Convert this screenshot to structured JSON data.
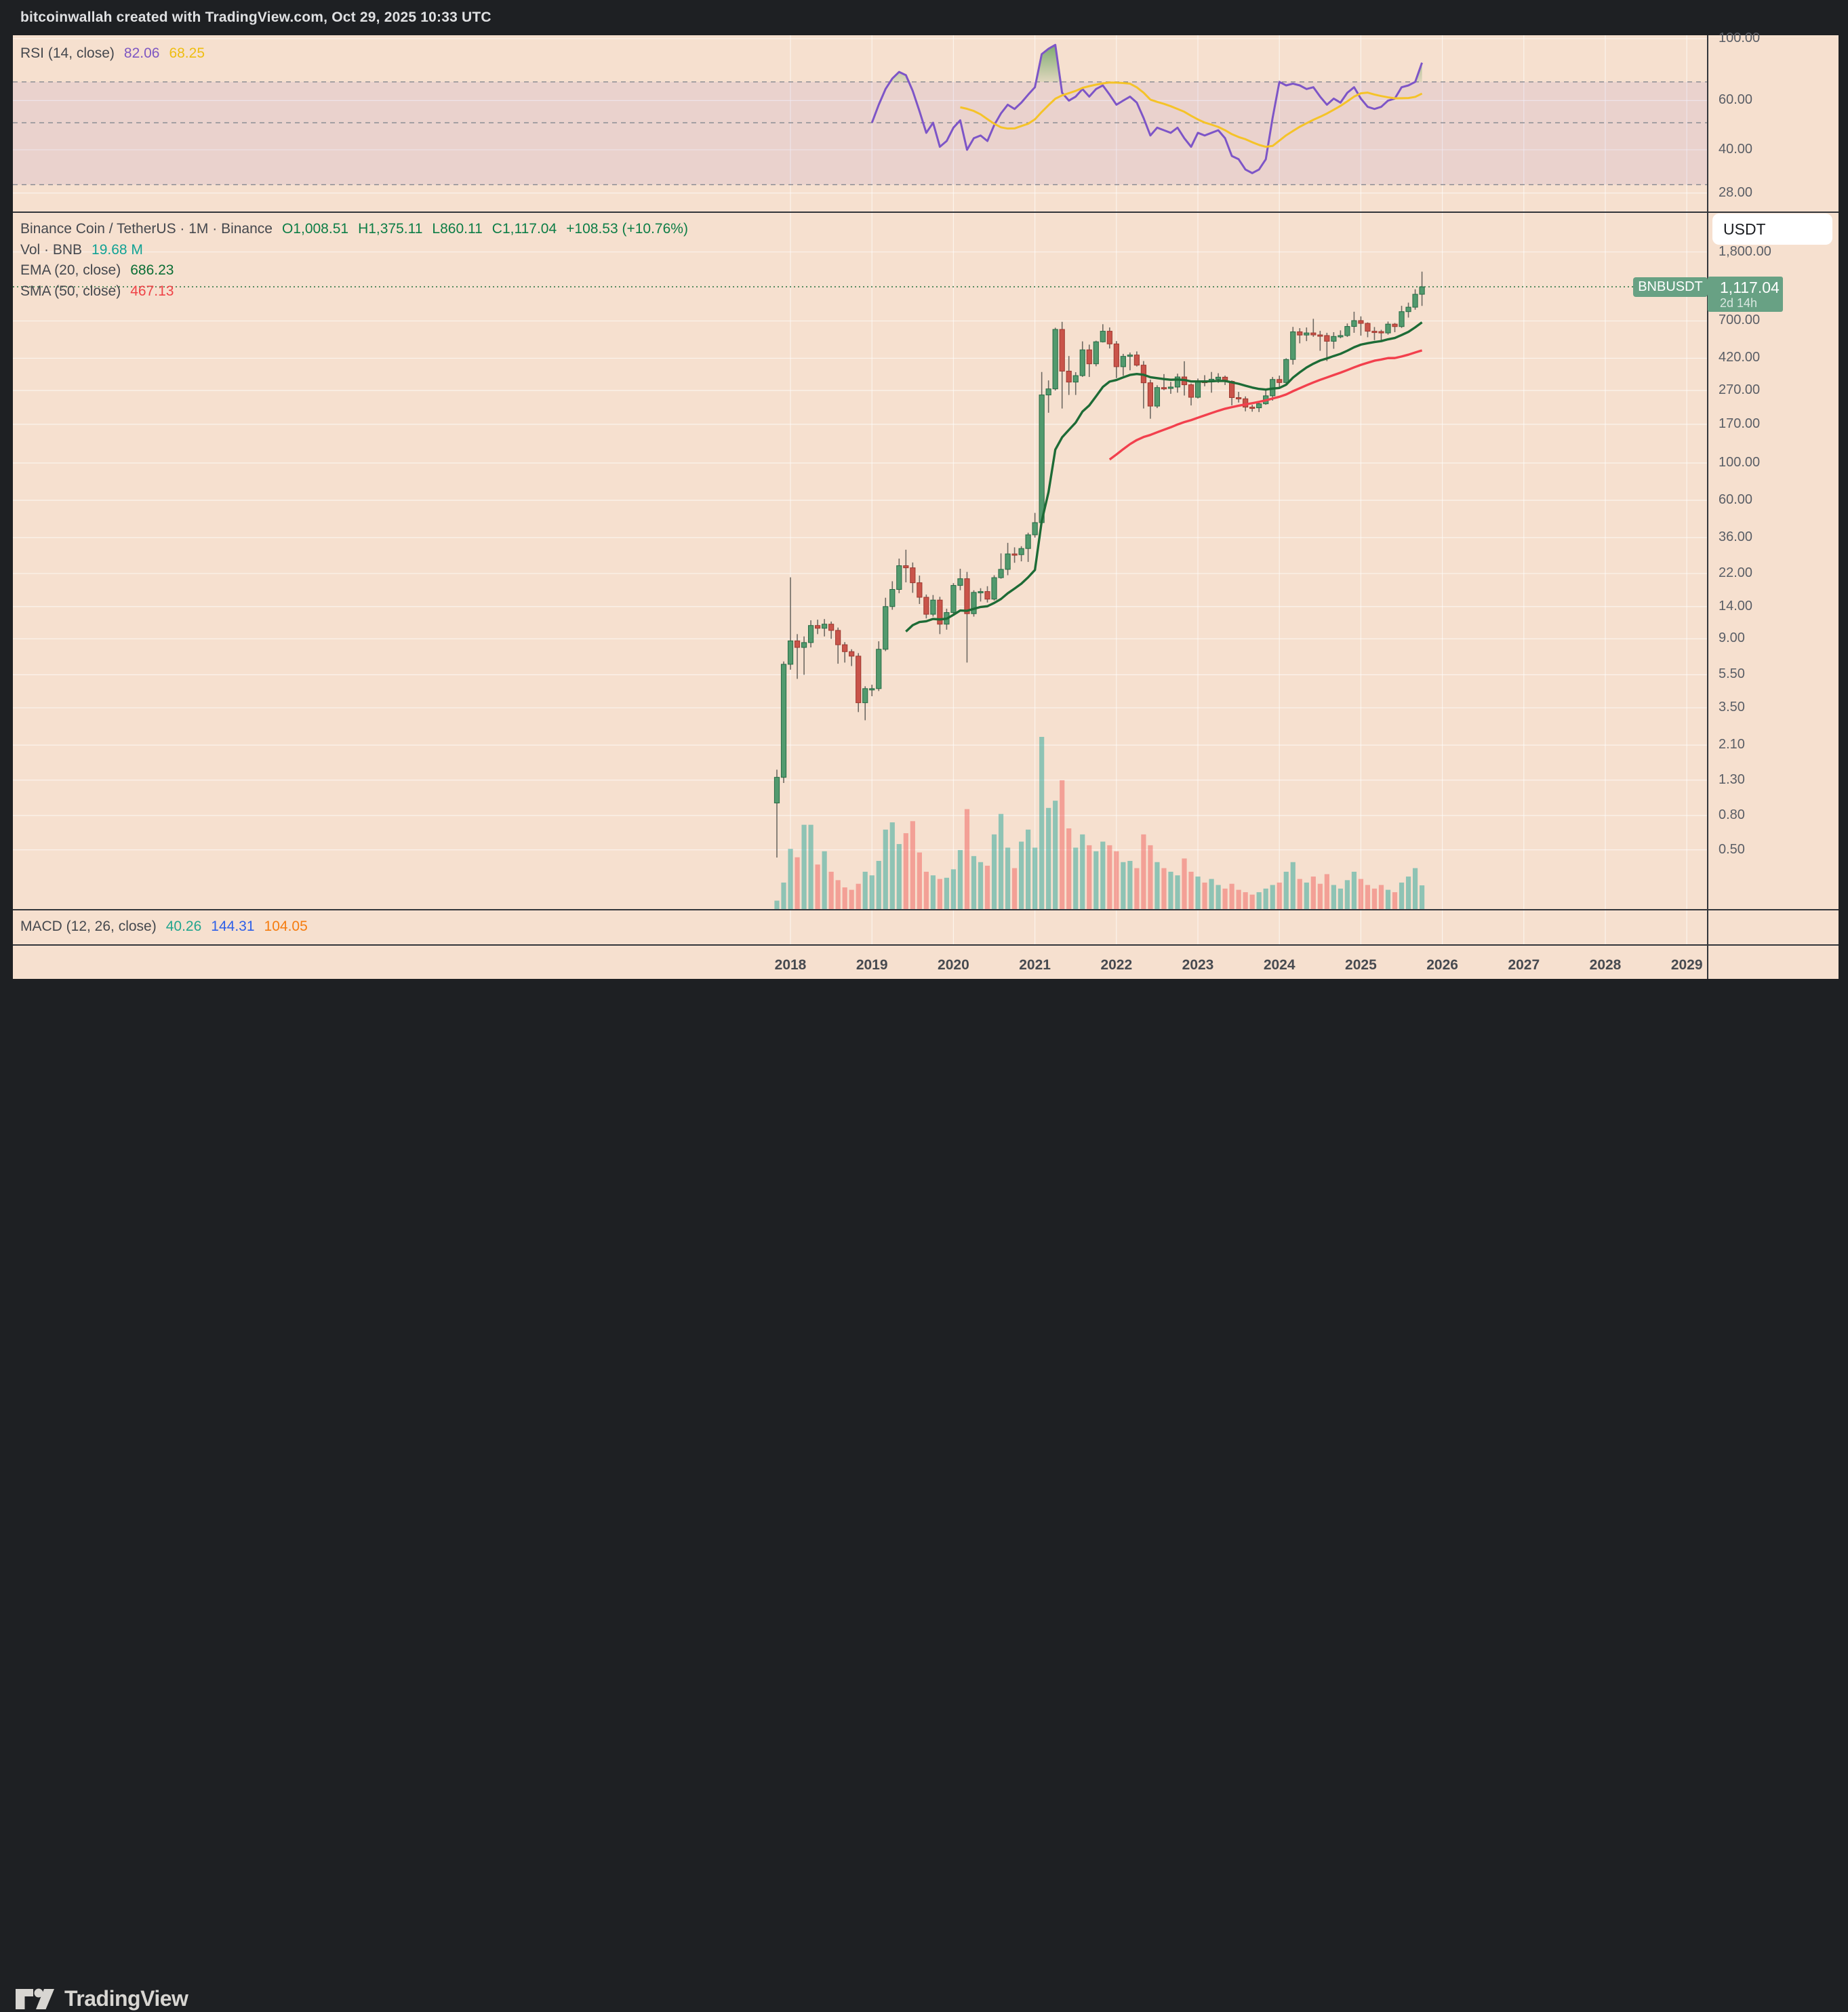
{
  "header": {
    "title": "bitcoinwallah created with TradingView.com, Oct 29, 2025 10:33 UTC"
  },
  "legend_rsi": {
    "label": "RSI (14, close)",
    "rsi_value": "82.06",
    "ma_value": "68.25"
  },
  "legend_main": {
    "title": "Binance Coin / TetherUS · 1M · Binance",
    "open": "O1,008.51",
    "high": "H1,375.11",
    "low": "L860.11",
    "close": "C1,117.04",
    "change": "+108.53 (+10.76%)"
  },
  "legend_vol": {
    "label": "Vol · BNB",
    "value": "19.68 M"
  },
  "legend_ema": {
    "label": "EMA (20, close)",
    "value": "686.23"
  },
  "legend_sma": {
    "label": "SMA (50, close)",
    "value": "467.13"
  },
  "legend_macd": {
    "label": "MACD (12, 26, close)",
    "hist": "40.26",
    "macd": "144.31",
    "signal": "104.05"
  },
  "price_scale": {
    "currency_button": "USDT",
    "symbol_tag": "BNBUSDT",
    "tag_price": "1,117.04",
    "tag_countdown": "2d 14h",
    "ticks": [
      {
        "label": "1,800.00",
        "value": 1800
      },
      {
        "label": "700.00",
        "value": 700
      },
      {
        "label": "420.00",
        "value": 420
      },
      {
        "label": "270.00",
        "value": 270
      },
      {
        "label": "170.00",
        "value": 170
      },
      {
        "label": "100.00",
        "value": 100
      },
      {
        "label": "60.00",
        "value": 60
      },
      {
        "label": "36.00",
        "value": 36
      },
      {
        "label": "22.00",
        "value": 22
      },
      {
        "label": "14.00",
        "value": 14
      },
      {
        "label": "9.00",
        "value": 9
      },
      {
        "label": "5.50",
        "value": 5.5
      },
      {
        "label": "3.50",
        "value": 3.5
      },
      {
        "label": "2.10",
        "value": 2.1
      },
      {
        "label": "1.30",
        "value": 1.3
      },
      {
        "label": "0.80",
        "value": 0.8
      },
      {
        "label": "0.50",
        "value": 0.5
      }
    ],
    "rsi_ticks": [
      {
        "label": "100.00",
        "value": 100
      },
      {
        "label": "60.00",
        "value": 60
      },
      {
        "label": "40.00",
        "value": 40
      },
      {
        "label": "28.00",
        "value": 28
      }
    ]
  },
  "time_scale": {
    "years": [
      2018,
      2019,
      2020,
      2021,
      2022,
      2023,
      2024,
      2025,
      2026,
      2027,
      2028,
      2029
    ]
  },
  "footer": {
    "brand": "TradingView"
  },
  "chart_data": {
    "type": "candlestick",
    "symbol": "BNBUSDT",
    "exchange": "Binance",
    "timeframe": "1M",
    "log_scale": true,
    "last_price": 1117.04,
    "countdown": "2d 14h",
    "indicators": {
      "ema_period": 20,
      "sma_period": 50,
      "rsi_period": 14,
      "rsi_ma_period": 14,
      "rsi_bands": [
        70,
        50,
        30
      ],
      "macd": {
        "fast": 12,
        "slow": 26,
        "source": "close",
        "hist": 40.26,
        "macd": 144.31,
        "signal": 104.05
      }
    },
    "columns": [
      "month",
      "open",
      "high",
      "low",
      "close",
      "volume_m"
    ],
    "candles": [
      [
        "2017-11",
        0.95,
        1.5,
        0.45,
        1.35,
        7
      ],
      [
        "2017-12",
        1.35,
        6.6,
        1.25,
        6.35,
        22
      ],
      [
        "2018-01",
        6.35,
        20.9,
        5.9,
        8.75,
        50
      ],
      [
        "2018-02",
        8.75,
        9.6,
        5.2,
        8.0,
        43
      ],
      [
        "2018-03",
        8.0,
        9.3,
        5.5,
        8.55,
        70
      ],
      [
        "2018-04",
        8.55,
        11.6,
        8.0,
        10.8,
        70
      ],
      [
        "2018-05",
        10.8,
        11.7,
        9.6,
        10.4,
        37
      ],
      [
        "2018-06",
        10.4,
        11.8,
        9.3,
        11.0,
        48
      ],
      [
        "2018-07",
        11.0,
        11.4,
        9.0,
        10.1,
        31
      ],
      [
        "2018-08",
        10.1,
        10.5,
        6.4,
        8.3,
        24
      ],
      [
        "2018-09",
        8.3,
        8.6,
        6.5,
        7.55,
        18
      ],
      [
        "2018-10",
        7.55,
        7.8,
        6.2,
        7.1,
        16
      ],
      [
        "2018-11",
        7.1,
        7.4,
        3.3,
        3.75,
        21
      ],
      [
        "2018-12",
        3.75,
        4.7,
        2.95,
        4.55,
        31
      ],
      [
        "2019-01",
        4.55,
        4.8,
        4.1,
        4.55,
        28
      ],
      [
        "2019-02",
        4.55,
        8.7,
        4.4,
        7.8,
        40
      ],
      [
        "2019-03",
        7.8,
        15.8,
        7.6,
        14.0,
        66
      ],
      [
        "2019-04",
        14.0,
        19.8,
        13.4,
        17.7,
        72
      ],
      [
        "2019-05",
        17.7,
        27.0,
        16.8,
        24.5,
        54
      ],
      [
        "2019-06",
        24.5,
        30.5,
        19.5,
        23.8,
        63
      ],
      [
        "2019-07",
        23.8,
        25.6,
        16.9,
        19.4,
        73
      ],
      [
        "2019-08",
        19.4,
        21.4,
        14.5,
        15.9,
        47
      ],
      [
        "2019-09",
        15.9,
        16.5,
        11.9,
        12.6,
        31
      ],
      [
        "2019-10",
        12.6,
        16.4,
        12.2,
        15.3,
        28
      ],
      [
        "2019-11",
        15.3,
        16.0,
        9.6,
        11.0,
        25
      ],
      [
        "2019-12",
        11.0,
        13.6,
        10.2,
        12.9,
        26
      ],
      [
        "2020-01",
        12.9,
        19.3,
        12.5,
        18.7,
        33
      ],
      [
        "2020-02",
        18.7,
        23.5,
        17.5,
        20.5,
        49
      ],
      [
        "2020-03",
        20.5,
        22.5,
        6.5,
        12.7,
        83
      ],
      [
        "2020-04",
        12.7,
        17.5,
        12.2,
        17.0,
        44
      ],
      [
        "2020-05",
        17.0,
        18.0,
        15.0,
        17.2,
        39
      ],
      [
        "2020-06",
        17.2,
        18.5,
        14.8,
        15.5,
        36
      ],
      [
        "2020-07",
        15.5,
        21.5,
        15.2,
        20.8,
        62
      ],
      [
        "2020-08",
        20.8,
        29.0,
        20.5,
        23.3,
        79
      ],
      [
        "2020-09",
        23.3,
        33.5,
        21.5,
        28.8,
        51
      ],
      [
        "2020-10",
        28.8,
        31.5,
        25.5,
        28.5,
        34
      ],
      [
        "2020-11",
        28.5,
        32.0,
        26.0,
        31.0,
        56
      ],
      [
        "2020-12",
        31.0,
        38.5,
        25.8,
        37.4,
        66
      ],
      [
        "2021-01",
        37.4,
        50.5,
        36.0,
        44.2,
        51
      ],
      [
        "2021-02",
        44.2,
        348.0,
        43.5,
        254.0,
        143
      ],
      [
        "2021-03",
        254.0,
        310.0,
        199.0,
        276.0,
        84
      ],
      [
        "2021-04",
        276.0,
        638.0,
        270.0,
        623.0,
        90
      ],
      [
        "2021-05",
        623.0,
        691.77,
        211.0,
        352.0,
        107
      ],
      [
        "2021-06",
        352.0,
        433.0,
        254.0,
        303.0,
        67
      ],
      [
        "2021-07",
        303.0,
        347.0,
        254.0,
        331.0,
        51
      ],
      [
        "2021-08",
        331.0,
        529.0,
        325.0,
        471.0,
        62
      ],
      [
        "2021-09",
        471.0,
        506.0,
        325.0,
        389.0,
        53
      ],
      [
        "2021-10",
        389.0,
        534.0,
        376.0,
        526.0,
        48
      ],
      [
        "2021-11",
        526.0,
        669.0,
        521.0,
        608.0,
        56
      ],
      [
        "2021-12",
        608.0,
        640.0,
        480.0,
        511.0,
        53
      ],
      [
        "2022-01",
        511.0,
        531.0,
        320.0,
        374.0,
        48
      ],
      [
        "2022-02",
        374.0,
        446.0,
        330.0,
        431.0,
        39
      ],
      [
        "2022-03",
        431.0,
        454.0,
        356.0,
        439.0,
        40
      ],
      [
        "2022-04",
        439.0,
        461.0,
        375.0,
        382.0,
        34
      ],
      [
        "2022-05",
        382.0,
        404.0,
        211.0,
        300.0,
        62
      ],
      [
        "2022-06",
        300.0,
        313.0,
        183.4,
        218.0,
        53
      ],
      [
        "2022-07",
        218.0,
        290.0,
        212.0,
        281.0,
        39
      ],
      [
        "2022-08",
        281.0,
        338.0,
        271.0,
        279.0,
        34
      ],
      [
        "2022-09",
        279.0,
        304.0,
        258.0,
        283.0,
        31
      ],
      [
        "2022-10",
        283.0,
        340.0,
        262.0,
        325.0,
        28
      ],
      [
        "2022-11",
        325.0,
        403.0,
        252.0,
        292.0,
        42
      ],
      [
        "2022-12",
        292.0,
        297.0,
        220.0,
        246.0,
        31
      ],
      [
        "2023-01",
        246.0,
        318.0,
        242.0,
        306.0,
        27
      ],
      [
        "2023-02",
        306.0,
        333.0,
        286.0,
        304.0,
        22
      ],
      [
        "2023-03",
        304.0,
        348.0,
        262.0,
        315.0,
        25
      ],
      [
        "2023-04",
        315.0,
        342.0,
        300.0,
        324.0,
        20
      ],
      [
        "2023-05",
        324.0,
        331.0,
        291.0,
        306.0,
        17
      ],
      [
        "2023-06",
        306.0,
        310.0,
        220.0,
        245.0,
        21
      ],
      [
        "2023-07",
        245.0,
        265.0,
        229.0,
        241.0,
        16
      ],
      [
        "2023-08",
        241.0,
        249.0,
        203.0,
        215.0,
        14
      ],
      [
        "2023-09",
        215.0,
        222.0,
        202.0,
        213.0,
        12
      ],
      [
        "2023-10",
        213.0,
        233.0,
        201.0,
        225.0,
        14
      ],
      [
        "2023-11",
        225.0,
        270.0,
        222.0,
        251.0,
        17
      ],
      [
        "2023-12",
        251.0,
        325.0,
        235.0,
        314.0,
        20
      ],
      [
        "2024-01",
        314.0,
        331.0,
        277.0,
        301.0,
        22
      ],
      [
        "2024-02",
        301.0,
        420.0,
        297.0,
        413.0,
        31
      ],
      [
        "2024-03",
        413.0,
        645.0,
        385.0,
        603.0,
        39
      ],
      [
        "2024-04",
        603.0,
        634.0,
        515.0,
        577.0,
        25
      ],
      [
        "2024-05",
        577.0,
        640.0,
        531.0,
        594.0,
        22
      ],
      [
        "2024-06",
        594.0,
        720.67,
        563.0,
        578.0,
        27
      ],
      [
        "2024-07",
        578.0,
        611.0,
        465.0,
        573.0,
        21
      ],
      [
        "2024-08",
        573.0,
        595.0,
        404.0,
        530.0,
        29
      ],
      [
        "2024-09",
        530.0,
        600.0,
        478.0,
        566.0,
        20
      ],
      [
        "2024-10",
        566.0,
        615.0,
        552.0,
        573.0,
        17
      ],
      [
        "2024-11",
        573.0,
        676.0,
        562.0,
        649.0,
        24
      ],
      [
        "2024-12",
        649.0,
        794.0,
        595.0,
        703.0,
        31
      ],
      [
        "2025-01",
        703.0,
        745.0,
        572.0,
        677.0,
        25
      ],
      [
        "2025-02",
        677.0,
        686.0,
        560.0,
        608.0,
        20
      ],
      [
        "2025-03",
        608.0,
        644.0,
        538.0,
        605.0,
        17
      ],
      [
        "2025-04",
        605.0,
        620.0,
        536.0,
        594.0,
        20
      ],
      [
        "2025-05",
        594.0,
        694.0,
        580.0,
        670.0,
        16
      ],
      [
        "2025-06",
        670.0,
        680.0,
        600.0,
        648.0,
        14
      ],
      [
        "2025-07",
        648.0,
        861.0,
        636.0,
        795.0,
        22
      ],
      [
        "2025-08",
        795.0,
        899.0,
        733.0,
        845.0,
        27
      ],
      [
        "2025-09",
        845.0,
        1080.0,
        816.0,
        1008.51,
        34
      ],
      [
        "2025-10",
        1008.51,
        1375.11,
        860.11,
        1117.04,
        19.68
      ]
    ],
    "rsi": {
      "start_index": 14,
      "values": [
        50,
        58,
        66,
        72,
        76,
        74,
        65,
        55,
        46,
        50,
        41,
        43,
        48,
        51,
        40,
        44,
        45,
        43,
        49,
        54,
        58,
        56,
        59,
        63,
        67,
        88,
        92,
        95,
        64,
        60,
        62,
        66,
        62,
        66,
        68,
        63,
        58,
        60,
        62,
        59,
        52,
        45,
        48,
        47,
        46,
        48,
        44,
        41,
        46,
        45,
        46,
        47,
        44,
        38,
        37,
        34,
        33,
        34,
        37,
        52,
        70,
        68,
        69,
        68,
        66,
        67,
        62,
        58,
        61,
        59,
        64,
        67,
        61,
        57,
        56,
        57,
        60,
        61,
        67,
        68,
        70,
        82
      ]
    },
    "colors": {
      "pane_bg": "#f6e0cf",
      "up_fill": "#529a6e",
      "up_border": "#266b44",
      "down_fill": "#c9544a",
      "down_border": "#9e382f",
      "wick": "#6e6962",
      "ema": "#1d6b36",
      "sma": "#f2404d",
      "rsi_line": "#7d55c7",
      "rsi_ma": "#f5c328",
      "rsi_band_fill": "rgba(126,87,194,0.10)",
      "rsi_overbought_fill": "#3f8f3f",
      "vol_up": "rgba(38,166,154,0.50)",
      "vol_down": "rgba(239,83,80,0.45)",
      "grid": "rgba(255,255,255,0.60)",
      "dashed_band": "#858890",
      "separator": "#33363b",
      "last_price_line": "#33784a",
      "tag_bg": "#68a184"
    }
  }
}
